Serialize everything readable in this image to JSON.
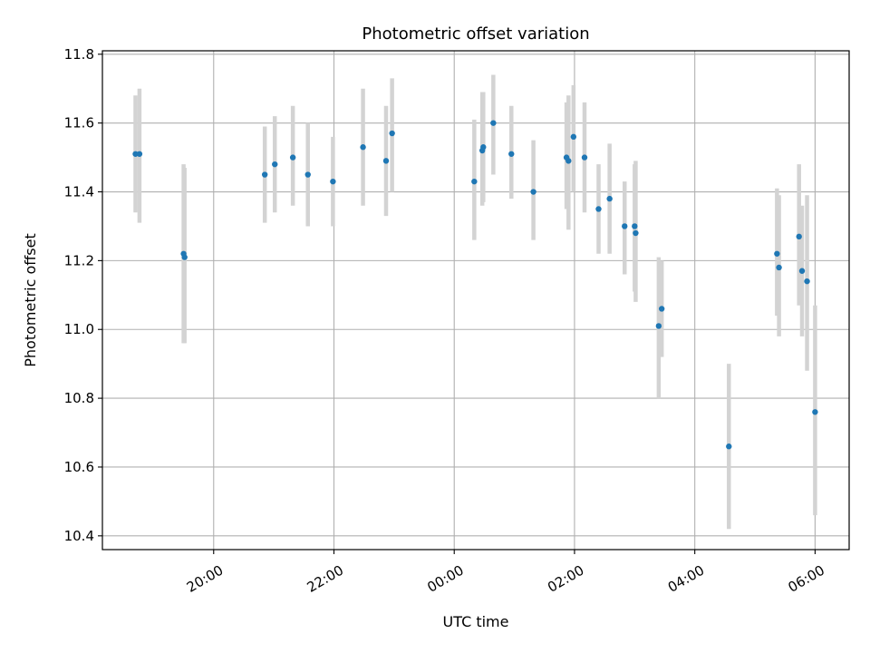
{
  "chart_data": {
    "type": "scatter",
    "title": "Photometric offset variation",
    "xlabel": "UTC time",
    "ylabel": "Photometric offset",
    "x_axis": "time (hours from 00:00 UTC; negative = previous evening)",
    "xlim": [
      "18:09",
      "06:34"
    ],
    "ylim": [
      10.36,
      11.81
    ],
    "x_ticks": [
      {
        "value": -4,
        "label": "20:00"
      },
      {
        "value": -2,
        "label": "22:00"
      },
      {
        "value": 0,
        "label": "00:00"
      },
      {
        "value": 2,
        "label": "02:00"
      },
      {
        "value": 4,
        "label": "04:00"
      },
      {
        "value": 6,
        "label": "06:00"
      }
    ],
    "y_ticks": [
      {
        "value": 10.4,
        "label": "10.4"
      },
      {
        "value": 10.6,
        "label": "10.6"
      },
      {
        "value": 10.8,
        "label": "10.8"
      },
      {
        "value": 11.0,
        "label": "11.0"
      },
      {
        "value": 11.2,
        "label": "11.2"
      },
      {
        "value": 11.4,
        "label": "11.4"
      },
      {
        "value": 11.6,
        "label": "11.6"
      },
      {
        "value": 11.8,
        "label": "11.8"
      }
    ],
    "grid": true,
    "colors": {
      "point": "#1f77b4",
      "errorbar": "#d3d3d3",
      "grid": "#b0b0b0"
    },
    "series": [
      {
        "points": [
          {
            "x": "18:42",
            "y": 11.51,
            "lo": 11.34,
            "hi": 11.68
          },
          {
            "x": "18:46",
            "y": 11.51,
            "lo": 11.31,
            "hi": 11.7
          },
          {
            "x": "19:30",
            "y": 11.22,
            "lo": 10.96,
            "hi": 11.48
          },
          {
            "x": "19:31",
            "y": 11.21,
            "lo": 10.96,
            "hi": 11.47
          },
          {
            "x": "20:51",
            "y": 11.45,
            "lo": 11.31,
            "hi": 11.59
          },
          {
            "x": "21:01",
            "y": 11.48,
            "lo": 11.34,
            "hi": 11.62
          },
          {
            "x": "21:19",
            "y": 11.5,
            "lo": 11.36,
            "hi": 11.65
          },
          {
            "x": "21:34",
            "y": 11.45,
            "lo": 11.3,
            "hi": 11.6
          },
          {
            "x": "21:59",
            "y": 11.43,
            "lo": 11.3,
            "hi": 11.56
          },
          {
            "x": "22:29",
            "y": 11.53,
            "lo": 11.36,
            "hi": 11.7
          },
          {
            "x": "22:52",
            "y": 11.49,
            "lo": 11.33,
            "hi": 11.65
          },
          {
            "x": "22:58",
            "y": 11.57,
            "lo": 11.4,
            "hi": 11.73
          },
          {
            "x": "00:20",
            "y": 11.43,
            "lo": 11.26,
            "hi": 11.61
          },
          {
            "x": "00:28",
            "y": 11.52,
            "lo": 11.36,
            "hi": 11.69
          },
          {
            "x": "00:29",
            "y": 11.53,
            "lo": 11.37,
            "hi": 11.69
          },
          {
            "x": "00:39",
            "y": 11.6,
            "lo": 11.45,
            "hi": 11.74
          },
          {
            "x": "00:57",
            "y": 11.51,
            "lo": 11.38,
            "hi": 11.65
          },
          {
            "x": "01:19",
            "y": 11.4,
            "lo": 11.26,
            "hi": 11.55
          },
          {
            "x": "01:52",
            "y": 11.5,
            "lo": 11.35,
            "hi": 11.66
          },
          {
            "x": "01:54",
            "y": 11.49,
            "lo": 11.29,
            "hi": 11.68
          },
          {
            "x": "01:59",
            "y": 11.56,
            "lo": 11.4,
            "hi": 11.71
          },
          {
            "x": "02:10",
            "y": 11.5,
            "lo": 11.34,
            "hi": 11.66
          },
          {
            "x": "02:24",
            "y": 11.35,
            "lo": 11.22,
            "hi": 11.48
          },
          {
            "x": "02:35",
            "y": 11.38,
            "lo": 11.22,
            "hi": 11.54
          },
          {
            "x": "02:50",
            "y": 11.3,
            "lo": 11.16,
            "hi": 11.43
          },
          {
            "x": "03:00",
            "y": 11.3,
            "lo": 11.11,
            "hi": 11.48
          },
          {
            "x": "03:01",
            "y": 11.28,
            "lo": 11.08,
            "hi": 11.49
          },
          {
            "x": "03:24",
            "y": 11.01,
            "lo": 10.8,
            "hi": 11.21
          },
          {
            "x": "03:27",
            "y": 11.06,
            "lo": 10.92,
            "hi": 11.2
          },
          {
            "x": "04:34",
            "y": 10.66,
            "lo": 10.42,
            "hi": 10.9
          },
          {
            "x": "05:22",
            "y": 11.22,
            "lo": 11.04,
            "hi": 11.41
          },
          {
            "x": "05:24",
            "y": 11.18,
            "lo": 10.98,
            "hi": 11.39
          },
          {
            "x": "05:44",
            "y": 11.27,
            "lo": 11.07,
            "hi": 11.48
          },
          {
            "x": "05:47",
            "y": 11.17,
            "lo": 10.98,
            "hi": 11.36
          },
          {
            "x": "05:52",
            "y": 11.14,
            "lo": 10.88,
            "hi": 11.39
          },
          {
            "x": "06:00",
            "y": 10.76,
            "lo": 10.46,
            "hi": 11.07
          }
        ]
      }
    ]
  }
}
